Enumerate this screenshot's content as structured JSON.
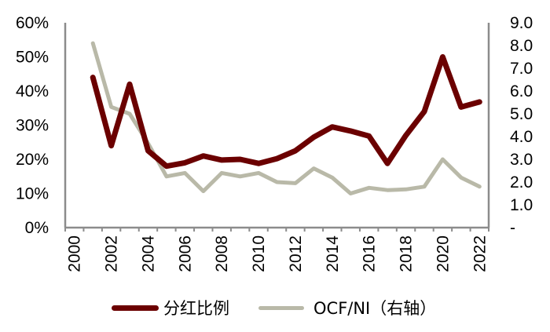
{
  "chart_data": {
    "type": "line",
    "title": "",
    "x": [
      "2000",
      "2001",
      "2002",
      "2003",
      "2004",
      "2005",
      "2006",
      "2007",
      "2008",
      "2009",
      "2010",
      "2011",
      "2012",
      "2013",
      "2014",
      "2015",
      "2016",
      "2017",
      "2018",
      "2019",
      "2020",
      "2021",
      "2022"
    ],
    "x_tick_labels": [
      "2000",
      "2002",
      "2004",
      "2006",
      "2008",
      "2010",
      "2012",
      "2014",
      "2016",
      "2018",
      "2020",
      "2022"
    ],
    "series": [
      {
        "name": "分红比例",
        "axis": "left",
        "color": "#6b0000",
        "values": [
          null,
          44,
          24,
          42,
          22.5,
          18,
          19,
          21,
          19.8,
          20,
          18.8,
          20.2,
          22.5,
          26.5,
          29.5,
          28.3,
          26.8,
          18.8,
          27,
          34,
          50,
          35.3,
          36.8
        ]
      },
      {
        "name": "OCF/NI（右轴）",
        "axis": "right",
        "color": "#b9b9a8",
        "values": [
          null,
          8.1,
          5.3,
          5.0,
          3.7,
          2.25,
          2.4,
          1.6,
          2.4,
          2.25,
          2.4,
          2.0,
          1.95,
          2.6,
          2.2,
          1.5,
          1.75,
          1.65,
          1.68,
          1.8,
          3.0,
          2.2,
          1.8
        ]
      }
    ],
    "left_axis": {
      "ylim": [
        0,
        60
      ],
      "ticks": [
        0,
        10,
        20,
        30,
        40,
        50,
        60
      ],
      "tick_labels": [
        "0%",
        "10%",
        "20%",
        "30%",
        "40%",
        "50%",
        "60%"
      ]
    },
    "right_axis": {
      "ylim": [
        0,
        9
      ],
      "ticks": [
        0,
        1,
        2,
        3,
        4,
        5,
        6,
        7,
        8,
        9
      ],
      "tick_labels": [
        "-",
        "1.0",
        "2.0",
        "3.0",
        "4.0",
        "5.0",
        "6.0",
        "7.0",
        "8.0",
        "9.0"
      ]
    },
    "xlabel": "",
    "ylabel": "",
    "grid": false,
    "legend_position": "bottom"
  },
  "legend": {
    "items": [
      {
        "label": "分红比例",
        "color": "#6b0000"
      },
      {
        "label": "OCF/NI（右轴）",
        "color": "#b9b9a8"
      }
    ]
  }
}
